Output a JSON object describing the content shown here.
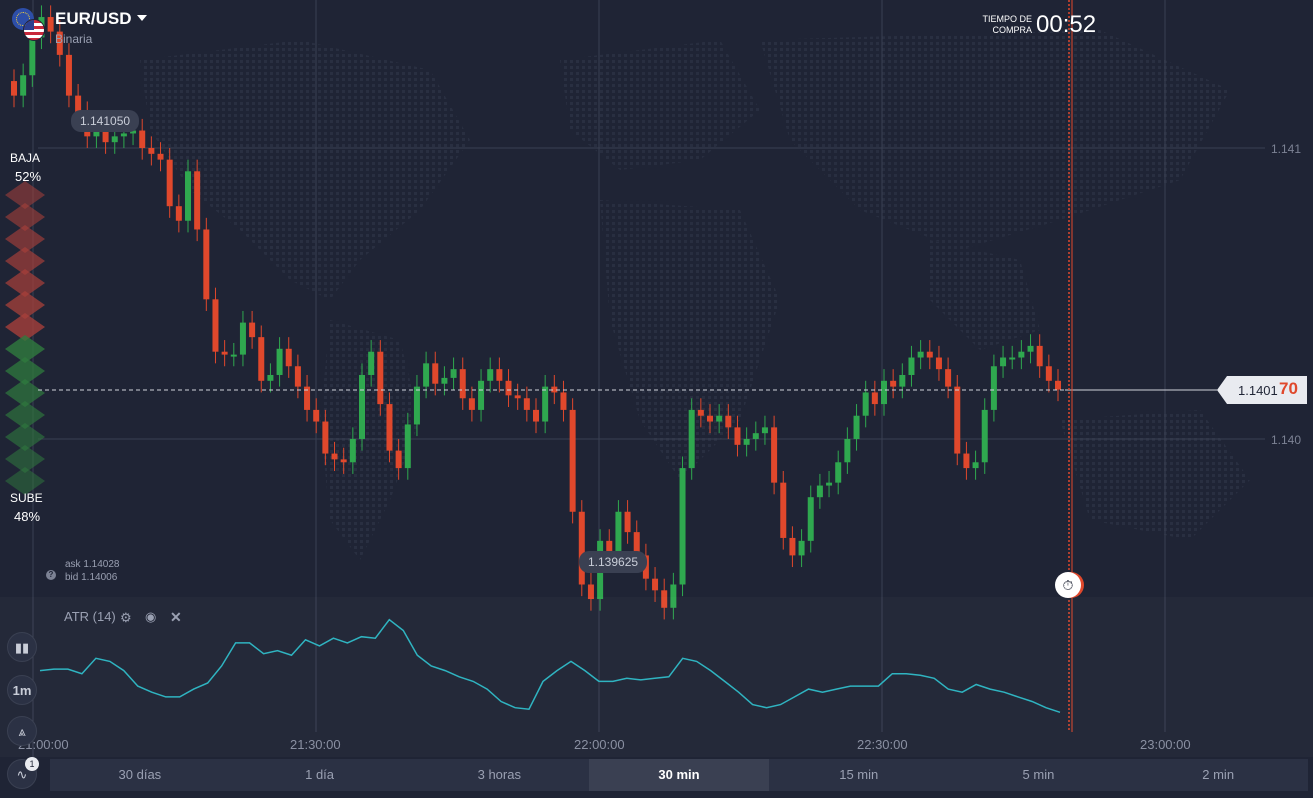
{
  "header": {
    "pair": "EUR/USD",
    "type": "Binaria",
    "timer_label_1": "TIEMPO DE",
    "timer_label_2": "COMPRA",
    "timer_value": "00:52"
  },
  "sentiment": {
    "down_label": "BAJA",
    "down_pct": "52%",
    "up_label": "SUBE",
    "up_pct": "48%"
  },
  "quotes": {
    "ask": "ask 1.14028",
    "bid": "bid 1.14006",
    "max_label": "1.141050",
    "min_label": "1.139625",
    "current_main": "1.1401",
    "current_tail": "70"
  },
  "y_axis": [
    "1.141",
    "1.140"
  ],
  "x_axis": [
    "21:00:00",
    "21:30:00",
    "22:00:00",
    "22:30:00",
    "23:00:00"
  ],
  "indicator": {
    "label": "ATR (14)"
  },
  "tools": {
    "timeframe": "1m",
    "indicator_badge": "1"
  },
  "timeframes": [
    "30 días",
    "1 día",
    "3 horas",
    "30 min",
    "15 min",
    "5 min",
    "2 min"
  ],
  "active_timeframe": "30 min",
  "colors": {
    "background": "#1f2435",
    "up": "#2fa84f",
    "down": "#e0482c",
    "atr_line": "#2bb3c0",
    "expiry_line": "#e0482c"
  },
  "chart_data": {
    "type": "candlestick",
    "x_label_times": [
      "21:00:00",
      "21:30:00",
      "22:00:00",
      "22:30:00",
      "23:00:00"
    ],
    "ylim": [
      1.1392,
      1.1422
    ],
    "current_price": 1.14017,
    "max_marker": 1.14105,
    "min_marker": 1.139625,
    "candles_close": [
      1.14118,
      1.14125,
      1.14138,
      1.14145,
      1.1414,
      1.14132,
      1.14118,
      1.14112,
      1.14104,
      1.14106,
      1.14102,
      1.14104,
      1.14105,
      1.14106,
      1.141,
      1.14098,
      1.14096,
      1.1408,
      1.14075,
      1.14092,
      1.14072,
      1.14048,
      1.1403,
      1.14029,
      1.14029,
      1.1404,
      1.14035,
      1.1402,
      1.14022,
      1.14031,
      1.14025,
      1.14018,
      1.1401,
      1.14006,
      1.13995,
      1.13993,
      1.13992,
      1.14,
      1.14022,
      1.1403,
      1.14012,
      1.13996,
      1.1399,
      1.14005,
      1.14018,
      1.14026,
      1.14019,
      1.14021,
      1.14024,
      1.14014,
      1.1401,
      1.1402,
      1.14024,
      1.1402,
      1.14015,
      1.14014,
      1.1401,
      1.14006,
      1.14018,
      1.14016,
      1.1401,
      1.13975,
      1.1395,
      1.13945,
      1.13965,
      1.1396,
      1.13975,
      1.13968,
      1.1396,
      1.13952,
      1.13948,
      1.13942,
      1.1395,
      1.1399,
      1.1401,
      1.14008,
      1.14006,
      1.14008,
      1.14004,
      1.13998,
      1.14,
      1.14002,
      1.14004,
      1.13985,
      1.13966,
      1.1396,
      1.13965,
      1.1398,
      1.13984,
      1.13985,
      1.13992,
      1.14,
      1.14008,
      1.14016,
      1.14012,
      1.1402,
      1.14018,
      1.14022,
      1.14028,
      1.1403,
      1.14028,
      1.14024,
      1.14018,
      1.13995,
      1.1399,
      1.13992,
      1.1401,
      1.14025,
      1.14028,
      1.14028,
      1.1403,
      1.14032,
      1.14025,
      1.1402,
      1.14017
    ],
    "atr": [
      0.52,
      0.53,
      0.53,
      0.5,
      0.6,
      0.58,
      0.52,
      0.42,
      0.38,
      0.35,
      0.35,
      0.4,
      0.44,
      0.55,
      0.7,
      0.7,
      0.63,
      0.65,
      0.62,
      0.72,
      0.68,
      0.73,
      0.7,
      0.74,
      0.73,
      0.85,
      0.78,
      0.62,
      0.55,
      0.52,
      0.48,
      0.45,
      0.4,
      0.32,
      0.28,
      0.27,
      0.45,
      0.52,
      0.58,
      0.52,
      0.45,
      0.45,
      0.47,
      0.46,
      0.47,
      0.48,
      0.6,
      0.58,
      0.52,
      0.45,
      0.38,
      0.3,
      0.28,
      0.3,
      0.35,
      0.4,
      0.38,
      0.4,
      0.42,
      0.42,
      0.42,
      0.5,
      0.5,
      0.49,
      0.47,
      0.4,
      0.38,
      0.43,
      0.4,
      0.38,
      0.35,
      0.32,
      0.28,
      0.25
    ]
  }
}
